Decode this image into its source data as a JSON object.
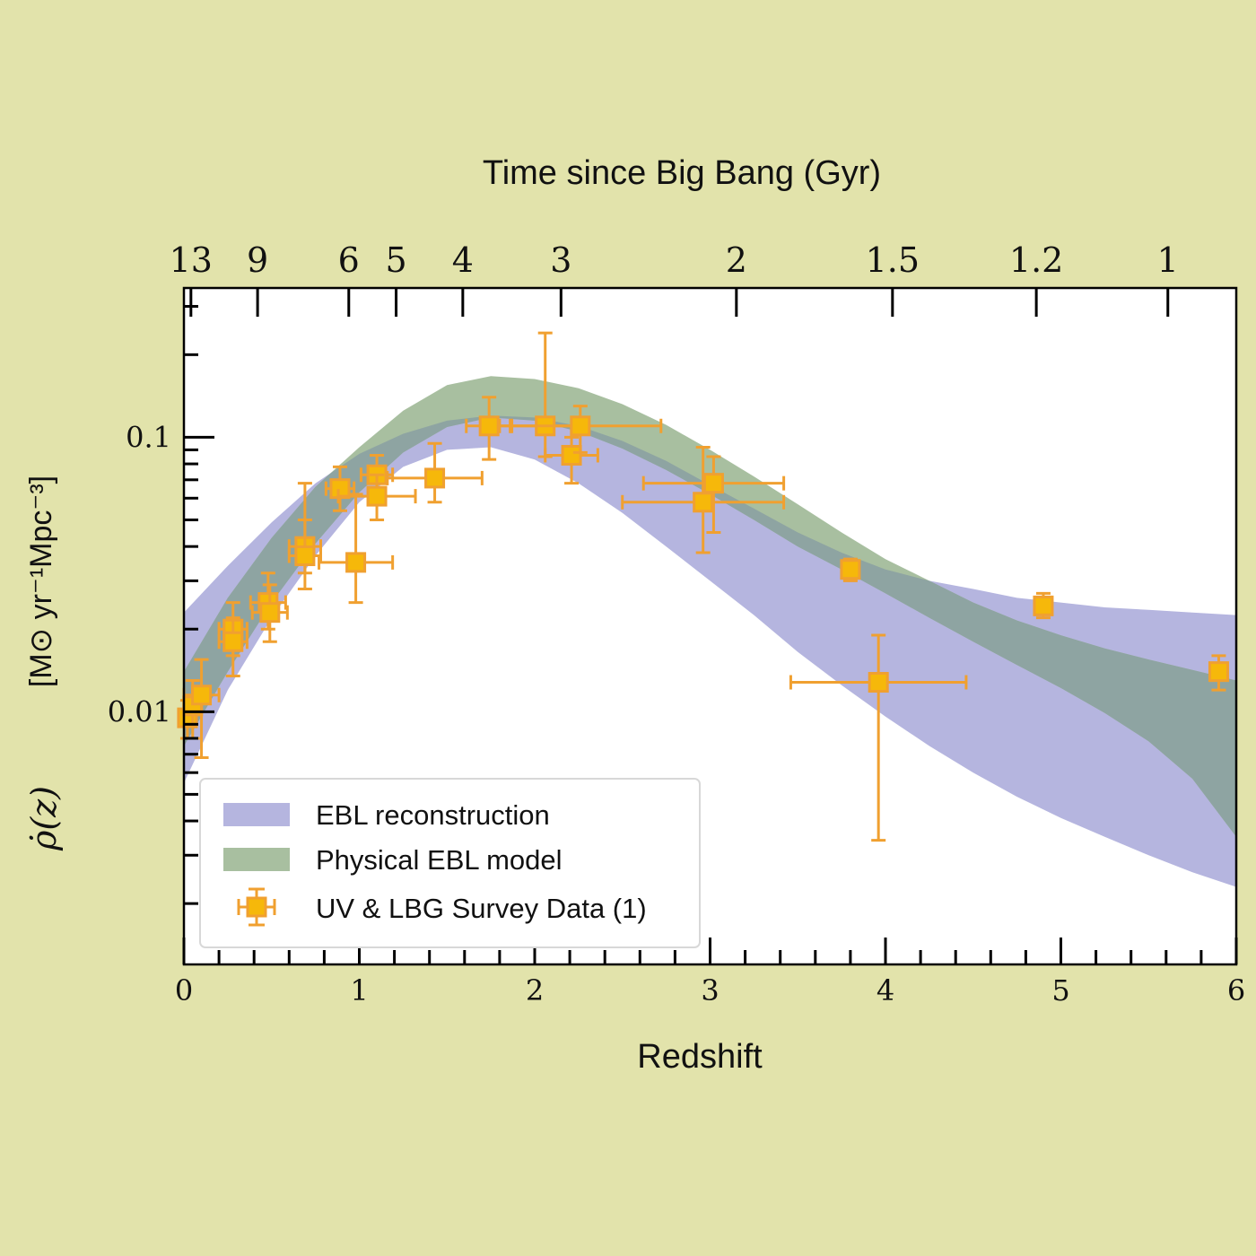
{
  "chart_data": {
    "type": "scatter",
    "title": "",
    "xlabel": "Redshift",
    "ylabel_symbol": "ρ̇(z)",
    "ylabel_units": "[M⊙ yr⁻¹Mpc⁻³]",
    "xlim": [
      0,
      6
    ],
    "ylim": [
      0.0012,
      0.35
    ],
    "yscale": "log",
    "x_ticks": [
      "0",
      "1",
      "2",
      "3",
      "4",
      "5",
      "6"
    ],
    "y_ticks": [
      "0.01",
      "0.1"
    ],
    "top_axis": {
      "label": "Time since Big Bang (Gyr)",
      "ticks": [
        {
          "label": "13",
          "z": 0.04
        },
        {
          "label": "9",
          "z": 0.42
        },
        {
          "label": "6",
          "z": 0.94
        },
        {
          "label": "5",
          "z": 1.21
        },
        {
          "label": "4",
          "z": 1.59
        },
        {
          "label": "3",
          "z": 2.15
        },
        {
          "label": "2",
          "z": 3.15
        },
        {
          "label": "1.5",
          "z": 4.04
        },
        {
          "label": "1.2",
          "z": 4.86
        },
        {
          "label": "1",
          "z": 5.61
        }
      ]
    },
    "grid": false,
    "legend_position": "lower-left",
    "legend": [
      "EBL reconstruction",
      "Physical EBL model",
      "UV & LBG Survey Data (1)"
    ],
    "colors": {
      "ebl_band": "#b5b5df",
      "physical_band": "#a8bfa0",
      "overlap": "#8ea4a2",
      "points": "#f6b80a",
      "point_edge": "#f0a030",
      "background": "#e2e3ab"
    },
    "series": [
      {
        "name": "EBL reconstruction",
        "kind": "band",
        "x": [
          0,
          0.25,
          0.5,
          0.75,
          1.0,
          1.25,
          1.5,
          1.75,
          2.0,
          2.25,
          2.5,
          2.75,
          3.0,
          3.25,
          3.5,
          3.75,
          4.0,
          4.25,
          4.5,
          4.75,
          5.0,
          5.25,
          5.5,
          5.75,
          6.0
        ],
        "upper": [
          0.023,
          0.034,
          0.049,
          0.068,
          0.087,
          0.103,
          0.115,
          0.12,
          0.118,
          0.11,
          0.097,
          0.082,
          0.067,
          0.055,
          0.045,
          0.038,
          0.033,
          0.03,
          0.028,
          0.026,
          0.025,
          0.024,
          0.0235,
          0.023,
          0.0225
        ],
        "lower": [
          0.0055,
          0.012,
          0.022,
          0.037,
          0.058,
          0.078,
          0.09,
          0.092,
          0.083,
          0.068,
          0.053,
          0.04,
          0.03,
          0.0225,
          0.0165,
          0.0125,
          0.0096,
          0.0075,
          0.006,
          0.0049,
          0.0041,
          0.0035,
          0.003,
          0.0026,
          0.0023
        ]
      },
      {
        "name": "Physical EBL model",
        "kind": "band",
        "x": [
          0,
          0.25,
          0.5,
          0.75,
          1.0,
          1.25,
          1.5,
          1.75,
          2.0,
          2.25,
          2.5,
          2.75,
          3.0,
          3.25,
          3.5,
          3.75,
          4.0,
          4.25,
          4.5,
          4.75,
          5.0,
          5.25,
          5.5,
          5.75,
          6.0
        ],
        "upper": [
          0.014,
          0.026,
          0.043,
          0.066,
          0.092,
          0.125,
          0.155,
          0.167,
          0.163,
          0.151,
          0.132,
          0.111,
          0.09,
          0.072,
          0.057,
          0.045,
          0.036,
          0.03,
          0.025,
          0.0215,
          0.019,
          0.017,
          0.0155,
          0.0142,
          0.013
        ],
        "lower": [
          0.0075,
          0.014,
          0.025,
          0.041,
          0.063,
          0.088,
          0.109,
          0.118,
          0.115,
          0.105,
          0.091,
          0.076,
          0.062,
          0.05,
          0.04,
          0.033,
          0.027,
          0.022,
          0.018,
          0.0148,
          0.0122,
          0.0099,
          0.0078,
          0.0057,
          0.0035
        ]
      },
      {
        "name": "UV & LBG Survey Data (1)",
        "kind": "points",
        "points": [
          {
            "x": 0.02,
            "y": 0.0095,
            "xerr": 0.03,
            "ylo": 0.008,
            "yhi": 0.011
          },
          {
            "x": 0.05,
            "y": 0.0105,
            "xerr": 0.05,
            "ylo": 0.008,
            "yhi": 0.013
          },
          {
            "x": 0.1,
            "y": 0.0115,
            "xerr": 0.1,
            "ylo": 0.0068,
            "yhi": 0.0155
          },
          {
            "x": 0.28,
            "y": 0.02,
            "xerr": 0.08,
            "ylo": 0.016,
            "yhi": 0.025
          },
          {
            "x": 0.28,
            "y": 0.018,
            "xerr": 0.08,
            "ylo": 0.0135,
            "yhi": 0.022
          },
          {
            "x": 0.48,
            "y": 0.025,
            "xerr": 0.1,
            "ylo": 0.02,
            "yhi": 0.032
          },
          {
            "x": 0.49,
            "y": 0.023,
            "xerr": 0.1,
            "ylo": 0.018,
            "yhi": 0.029
          },
          {
            "x": 0.69,
            "y": 0.04,
            "xerr": 0.09,
            "ylo": 0.032,
            "yhi": 0.05
          },
          {
            "x": 0.69,
            "y": 0.037,
            "xerr": 0.09,
            "ylo": 0.028,
            "yhi": 0.068
          },
          {
            "x": 0.89,
            "y": 0.065,
            "xerr": 0.08,
            "ylo": 0.054,
            "yhi": 0.078
          },
          {
            "x": 0.98,
            "y": 0.035,
            "xerr": 0.21,
            "ylo": 0.025,
            "yhi": 0.062
          },
          {
            "x": 1.1,
            "y": 0.073,
            "xerr": 0.09,
            "ylo": 0.06,
            "yhi": 0.086
          },
          {
            "x": 1.1,
            "y": 0.061,
            "xerr": 0.22,
            "ylo": 0.05,
            "yhi": 0.073
          },
          {
            "x": 1.43,
            "y": 0.071,
            "xerr": 0.27,
            "ylo": 0.058,
            "yhi": 0.095
          },
          {
            "x": 1.74,
            "y": 0.11,
            "xerr": 0.13,
            "ylo": 0.083,
            "yhi": 0.14
          },
          {
            "x": 2.06,
            "y": 0.11,
            "xerr": 0.2,
            "ylo": 0.085,
            "yhi": 0.24
          },
          {
            "x": 2.21,
            "y": 0.086,
            "xerr": 0.15,
            "ylo": 0.068,
            "yhi": 0.1
          },
          {
            "x": 2.26,
            "y": 0.11,
            "xerr": 0.46,
            "ylo": 0.088,
            "yhi": 0.13
          },
          {
            "x": 2.96,
            "y": 0.058,
            "xerr": 0.46,
            "ylo": 0.038,
            "yhi": 0.092
          },
          {
            "x": 3.02,
            "y": 0.068,
            "xerr": 0.4,
            "ylo": 0.045,
            "yhi": 0.085
          },
          {
            "x": 3.8,
            "y": 0.033,
            "xerr": 0.03,
            "ylo": 0.03,
            "yhi": 0.036
          },
          {
            "x": 3.96,
            "y": 0.0128,
            "xerr": 0.5,
            "ylo": 0.0034,
            "yhi": 0.019
          },
          {
            "x": 4.9,
            "y": 0.0243,
            "xerr": 0.03,
            "ylo": 0.022,
            "yhi": 0.027
          },
          {
            "x": 5.9,
            "y": 0.014,
            "xerr": 0.03,
            "ylo": 0.012,
            "yhi": 0.016
          }
        ]
      }
    ]
  }
}
